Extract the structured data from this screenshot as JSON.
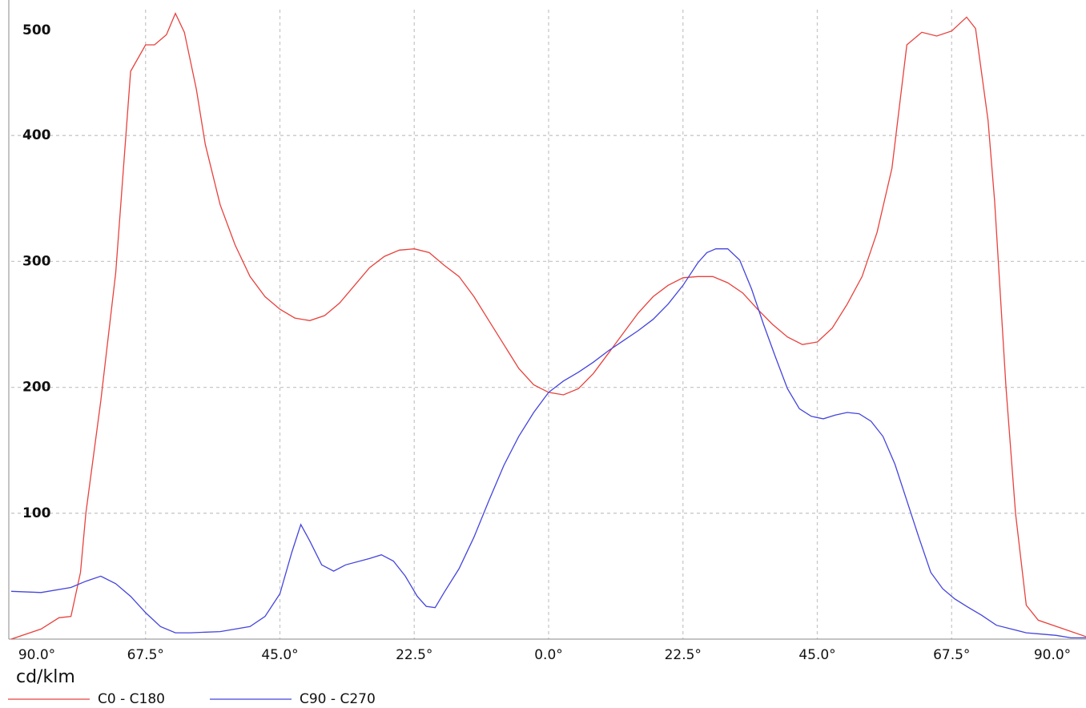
{
  "chart_data": {
    "type": "line",
    "y_axis_label": "cd/klm",
    "xlim": [
      -90,
      90
    ],
    "xticks": [
      {
        "value": -90,
        "label": "90.0°"
      },
      {
        "value": -67.5,
        "label": "67.5°"
      },
      {
        "value": -45,
        "label": "45.0°"
      },
      {
        "value": -22.5,
        "label": "22.5°"
      },
      {
        "value": 0,
        "label": "0.0°"
      },
      {
        "value": 22.5,
        "label": "22.5°"
      },
      {
        "value": 45,
        "label": "45.0°"
      },
      {
        "value": 67.5,
        "label": "67.5°"
      },
      {
        "value": 90,
        "label": "90.0°"
      }
    ],
    "ylim": [
      0,
      500
    ],
    "yticks": [
      100,
      200,
      300,
      400,
      500
    ],
    "grid": true,
    "series": [
      {
        "name": "C0 - C180",
        "color": "#e8413c",
        "x": [
          -90,
          -85,
          -82,
          -80,
          -78.4,
          -77.5,
          -75,
          -72.5,
          -70,
          -67.5,
          -66,
          -64,
          -62.5,
          -61,
          -59,
          -57.5,
          -55,
          -52.5,
          -50,
          -47.5,
          -45,
          -42.5,
          -40,
          -37.5,
          -35,
          -32.5,
          -30,
          -27.5,
          -25,
          -22.5,
          -20,
          -17.5,
          -15,
          -12.5,
          -10,
          -7.5,
          -5,
          -2.5,
          0,
          2.5,
          5,
          7.5,
          10,
          12.5,
          15,
          17.5,
          20,
          22.5,
          25,
          27.5,
          30,
          32.5,
          35,
          37.5,
          40,
          42.5,
          45,
          47.5,
          50,
          52.5,
          55,
          57.5,
          60,
          62.5,
          65,
          67.5,
          70,
          71.5,
          73.6,
          74.7,
          76.6,
          78.2,
          80,
          82,
          90
        ],
        "values": [
          0,
          8,
          17,
          18,
          53,
          100,
          189,
          291,
          451,
          472,
          472,
          480,
          497,
          482,
          437,
          393,
          345,
          313,
          288,
          272,
          262,
          255,
          253,
          257,
          267,
          281,
          295,
          304,
          309,
          310,
          307,
          297,
          288,
          272,
          253,
          234,
          215,
          202,
          196,
          194,
          199,
          211,
          227,
          243,
          259,
          272,
          281,
          287,
          288,
          288,
          283,
          275,
          262,
          250,
          240,
          234,
          236,
          247,
          266,
          288,
          323,
          374,
          472,
          482,
          479,
          483,
          494,
          485,
          412,
          348,
          200,
          100,
          27,
          15,
          2
        ]
      },
      {
        "name": "C90 - C270",
        "color": "#4444dd",
        "x": [
          -90,
          -85,
          -80,
          -77.5,
          -75,
          -72.5,
          -70,
          -67.5,
          -65,
          -62.5,
          -60,
          -55,
          -50,
          -47.5,
          -45,
          -43,
          -41.5,
          -40,
          -38,
          -36,
          -34,
          -30,
          -28,
          -26,
          -24,
          -22,
          -20.5,
          -19,
          -17.5,
          -15,
          -12.5,
          -10,
          -7.5,
          -5,
          -2.5,
          0,
          2.5,
          5,
          7.5,
          10,
          12.5,
          15,
          17.5,
          20,
          22.5,
          25,
          26.5,
          28,
          30,
          32,
          34,
          36,
          38,
          40,
          42,
          44,
          46,
          48,
          50,
          52,
          54,
          56,
          58,
          60,
          62,
          64,
          66,
          68,
          70,
          72.5,
          75,
          77.5,
          80,
          82.5,
          85,
          87.5,
          90
        ],
        "values": [
          38,
          37,
          41,
          46,
          50,
          44,
          34,
          21,
          10,
          5,
          5,
          6,
          10,
          18,
          36,
          69,
          91,
          78,
          59,
          54,
          59,
          64,
          67,
          62,
          50,
          34,
          26,
          25,
          37,
          56,
          81,
          110,
          138,
          161,
          180,
          196,
          205,
          212,
          220,
          229,
          237,
          245,
          254,
          266,
          281,
          299,
          307,
          310,
          310,
          301,
          278,
          250,
          224,
          199,
          183,
          177,
          175,
          178,
          180,
          179,
          173,
          161,
          139,
          110,
          81,
          53,
          40,
          32,
          26,
          19,
          11,
          8,
          5,
          4,
          3,
          1,
          1
        ]
      }
    ]
  }
}
